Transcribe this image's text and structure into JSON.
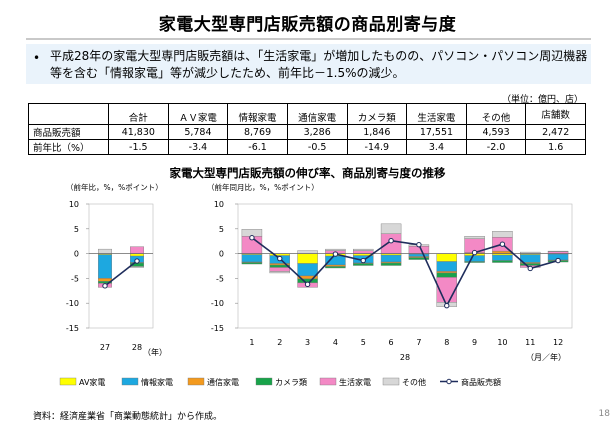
{
  "slide": {
    "title": "家電大型専門店販売額の商品別寄与度",
    "bullet": "•",
    "summary": "平成28年の家電大型専門店販売額は、「生活家電」が増加したものの、パソコン・パソコン周辺機器等を含む「情報家電」等が減少したため、前年比－1.5%の減少。",
    "unit_note": "（単位：億円、店）",
    "source": "資料：経済産業省「商業動態統計」から作成。",
    "page_number": "18"
  },
  "table": {
    "columns": [
      "合計",
      "ＡＶ家電",
      "情報家電",
      "通信家電",
      "カメラ類",
      "生活家電",
      "その他",
      "店舗数"
    ],
    "rows": [
      {
        "label": "商品販売額",
        "values": [
          "41,830",
          "5,784",
          "8,769",
          "3,286",
          "1,846",
          "17,551",
          "4,593",
          "2,472"
        ]
      },
      {
        "label": "前年比（%）",
        "values": [
          "-1.5",
          "-3.4",
          "-6.1",
          "-0.5",
          "-14.9",
          "3.4",
          "-2.0",
          "1.6"
        ]
      }
    ]
  },
  "chart_title": "家電大型専門店販売額の伸び率、商品別寄与度の推移",
  "legend": [
    {
      "key": "av",
      "label": "AV家電",
      "color": "#ffff00",
      "kind": "bar"
    },
    {
      "key": "info",
      "label": "情報家電",
      "color": "#1da8e0",
      "kind": "bar"
    },
    {
      "key": "comm",
      "label": "通信家電",
      "color": "#f39a1e",
      "kind": "bar"
    },
    {
      "key": "camera",
      "label": "カメラ類",
      "color": "#18a34a",
      "kind": "bar"
    },
    {
      "key": "life",
      "label": "生活家電",
      "color": "#f389c5",
      "kind": "bar"
    },
    {
      "key": "other",
      "label": "その他",
      "color": "#d7d7d7",
      "kind": "bar"
    },
    {
      "key": "total",
      "label": "商品販売額",
      "color": "#1f2d5c",
      "kind": "line"
    }
  ],
  "chart_data": [
    {
      "type": "bar",
      "stacked": true,
      "ylabel": "（前年比，%，%ポイント）",
      "xlabel": "（年）",
      "ylim": [
        -15,
        10
      ],
      "yticks": [
        10,
        5,
        0,
        -5,
        -10,
        -15
      ],
      "categories": [
        "27",
        "28"
      ],
      "series": [
        {
          "name": "AV家電",
          "values": [
            -0.2,
            -0.5
          ]
        },
        {
          "name": "情報家電",
          "values": [
            -4.8,
            -1.3
          ]
        },
        {
          "name": "通信家電",
          "values": [
            -0.6,
            -0.1
          ]
        },
        {
          "name": "カメラ類",
          "values": [
            -0.4,
            -0.7
          ]
        },
        {
          "name": "生活家電",
          "values": [
            -0.8,
            1.4
          ]
        },
        {
          "name": "その他",
          "values": [
            0.9,
            -0.2
          ]
        },
        {
          "name": "商品販売額",
          "type": "line",
          "values": [
            -6.5,
            -1.5
          ]
        }
      ]
    },
    {
      "type": "bar",
      "stacked": true,
      "ylabel": "（前年同月比，%，%ポイント）",
      "xlabel": "（月／年）",
      "year_label": "28",
      "ylim": [
        -15,
        10
      ],
      "yticks": [
        10,
        5,
        0,
        -5,
        -10,
        -15
      ],
      "categories": [
        "1",
        "2",
        "3",
        "4",
        "5",
        "6",
        "7",
        "8",
        "9",
        "10",
        "11",
        "12"
      ],
      "series": [
        {
          "name": "AV家電",
          "values": [
            -0.2,
            -0.4,
            -2.0,
            -0.5,
            -0.4,
            -0.3,
            -0.1,
            -1.6,
            -0.4,
            -0.3,
            -0.2,
            -0.1
          ]
        },
        {
          "name": "情報家電",
          "values": [
            -1.5,
            -1.6,
            -2.5,
            -1.8,
            -1.5,
            -1.4,
            -0.5,
            -2.0,
            -1.2,
            -1.1,
            -1.6,
            -1.2
          ]
        },
        {
          "name": "通信家電",
          "values": [
            -0.1,
            -0.3,
            -0.6,
            -0.3,
            -0.1,
            -0.2,
            -0.2,
            -0.3,
            0.2,
            0.5,
            -0.2,
            -0.1
          ]
        },
        {
          "name": "カメラ類",
          "values": [
            -0.3,
            -0.5,
            -0.8,
            -0.3,
            -0.4,
            -0.5,
            -0.4,
            -0.9,
            -0.2,
            -0.4,
            -0.4,
            -0.3
          ]
        },
        {
          "name": "生活家電",
          "values": [
            3.5,
            -0.8,
            -0.9,
            0.6,
            0.6,
            4.0,
            1.5,
            -5.0,
            2.8,
            2.8,
            -0.4,
            0.4
          ]
        },
        {
          "name": "その他",
          "values": [
            1.4,
            -0.3,
            0.6,
            0.3,
            0.3,
            2.0,
            0.3,
            -0.9,
            0.5,
            1.2,
            0.3,
            0.1
          ]
        },
        {
          "name": "商品販売額",
          "type": "line",
          "values": [
            3.2,
            -1.0,
            -6.2,
            -0.1,
            -1.4,
            2.6,
            1.8,
            -10.5,
            0.2,
            1.9,
            -3.0,
            -1.4
          ]
        }
      ]
    }
  ]
}
